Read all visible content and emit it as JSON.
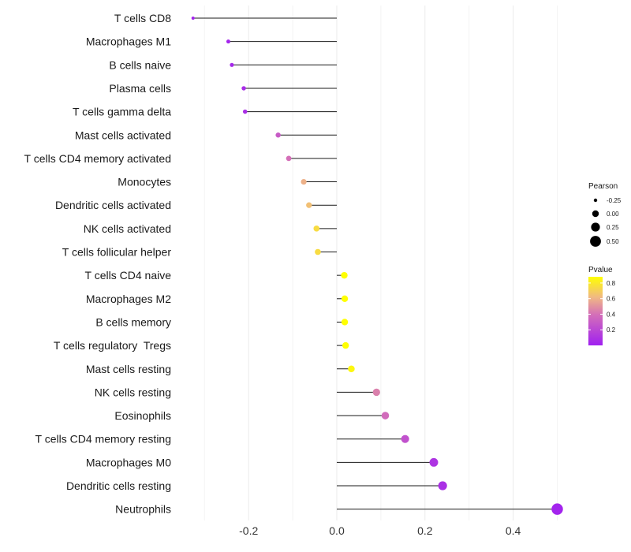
{
  "chart_data": {
    "type": "lollipop",
    "title": "",
    "xlabel": "",
    "ylabel": "",
    "xlim": [
      -0.3,
      0.5
    ],
    "xticks": [
      -0.2,
      0.0,
      0.2,
      0.4
    ],
    "xtick_labels": [
      "-0.2",
      "0.0",
      "0.2",
      "0.4"
    ],
    "baseline": 0,
    "grid": true,
    "categories": [
      "T cells CD8",
      "Macrophages M1",
      "B cells naive",
      "Plasma cells",
      "T cells gamma delta",
      "Mast cells activated",
      "T cells CD4 memory activated",
      "Monocytes",
      "Dendritic cells activated",
      "NK cells activated",
      "T cells follicular helper",
      "T cells CD4 naive",
      "Macrophages M2",
      "B cells memory",
      "T cells regulatory  Tregs",
      "Mast cells resting",
      "NK cells resting",
      "Eosinophils",
      "T cells CD4 memory resting",
      "Macrophages M0",
      "Dendritic cells resting",
      "Neutrophils"
    ],
    "values": [
      -0.326,
      -0.246,
      -0.238,
      -0.211,
      -0.208,
      -0.133,
      -0.109,
      -0.075,
      -0.063,
      -0.046,
      -0.043,
      0.017,
      0.018,
      0.018,
      0.02,
      0.033,
      0.09,
      0.11,
      0.155,
      0.22,
      0.24,
      0.5
    ],
    "pvalues": [
      0.02,
      0.03,
      0.04,
      0.06,
      0.07,
      0.3,
      0.4,
      0.6,
      0.65,
      0.75,
      0.75,
      0.88,
      0.88,
      0.88,
      0.88,
      0.85,
      0.45,
      0.38,
      0.25,
      0.1,
      0.08,
      0.02
    ],
    "size_legend": {
      "title": "Pearson",
      "breaks": [
        -0.25,
        0.0,
        0.25,
        0.5
      ],
      "labels": [
        "-0.25",
        "0.00",
        "0.25",
        "0.50"
      ]
    },
    "color_legend": {
      "title": "Pvalue",
      "breaks": [
        0.8,
        0.6,
        0.4,
        0.2
      ],
      "labels": [
        "0.8",
        "0.6",
        "0.4",
        "0.2"
      ],
      "range": [
        0.0,
        0.88
      ],
      "low_color": "#a020f0",
      "mid_color": "#e98fa0",
      "high_color": "#ffff00"
    },
    "legend_position": "right"
  }
}
